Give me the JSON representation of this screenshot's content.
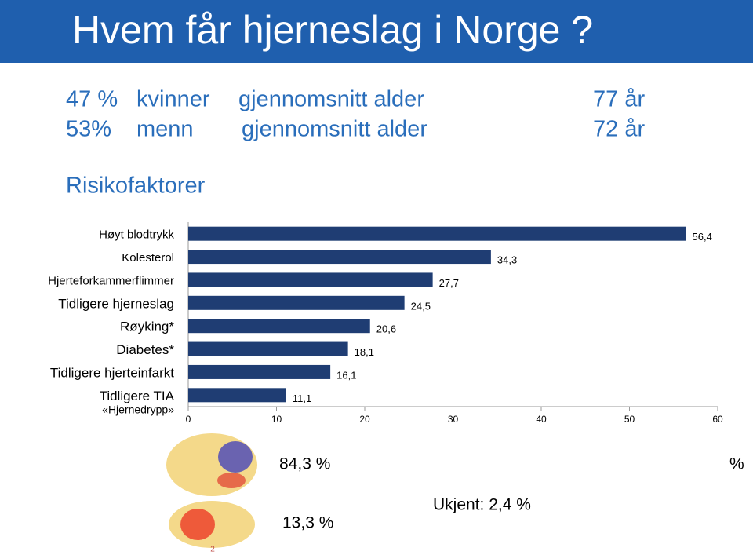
{
  "slide": {
    "title": "Hvem får hjerneslag i Norge ?",
    "stats": [
      [
        "47 %",
        "kvinner",
        "gjennomsnitt alder",
        "77 år"
      ],
      [
        "53%",
        "menn",
        "gjennomsnitt alder",
        "72 år"
      ]
    ],
    "section": "Risikofaktorer",
    "brain_labels": [
      "84,3 %",
      "%",
      "13,3 %",
      "Ukjent: 2,4 %"
    ],
    "page_number": "2"
  },
  "chart_data": {
    "type": "hbar",
    "categories": [
      "Høyt blodtrykk",
      "Kolesterol",
      "Hjerteforkammerflimmer",
      "Tidligere hjerneslag",
      "Røyking*",
      "Diabetes*",
      "Tidligere hjerteinfarkt",
      "Tidligere TIA"
    ],
    "category_note": "«Hjernedrypp»",
    "values": [
      56.4,
      34.3,
      27.7,
      24.5,
      20.6,
      18.1,
      16.1,
      11.1
    ],
    "value_labels": [
      "56,4",
      "34,3",
      "27,7",
      "24,5",
      "20,6",
      "18,1",
      "16,1",
      "11,1"
    ],
    "color": "#1f3d73",
    "xlim": [
      0,
      60
    ],
    "xticks": [
      0,
      10,
      20,
      30,
      40,
      50,
      60
    ]
  }
}
